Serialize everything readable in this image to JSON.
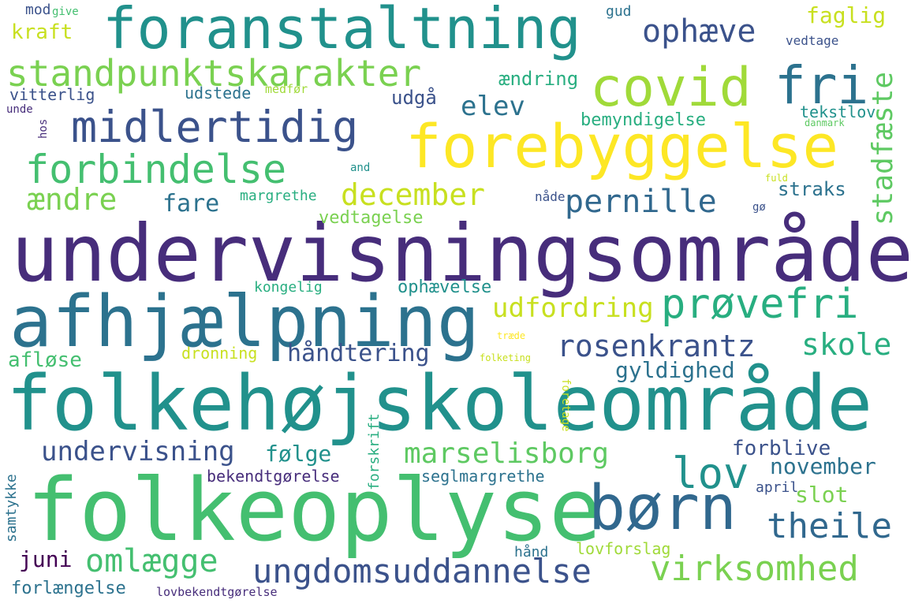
{
  "words": [
    {
      "text": "undervisningsområde",
      "color": "#472d7b"
    },
    {
      "text": "folkehøjskoleområde",
      "color": "#21918c"
    },
    {
      "text": "folkeoplyse",
      "color": "#44bf70"
    },
    {
      "text": "afhjælpning",
      "color": "#2c728e"
    },
    {
      "text": "forebyggelse",
      "color": "#fde725"
    },
    {
      "text": "foranstaltning",
      "color": "#21918c"
    },
    {
      "text": "covid",
      "color": "#a0da39"
    },
    {
      "text": "fri",
      "color": "#2c728e"
    },
    {
      "text": "børn",
      "color": "#31688e"
    },
    {
      "text": "midlertidig",
      "color": "#3b528b"
    },
    {
      "text": "standpunktskarakter",
      "color": "#7ad151"
    },
    {
      "text": "forbindelse",
      "color": "#44bf70"
    },
    {
      "text": "prøvefri",
      "color": "#28ae80"
    },
    {
      "text": "lov",
      "color": "#21918c"
    },
    {
      "text": "marselisborg",
      "color": "#5ec962"
    },
    {
      "text": "ungdomsuddannelse",
      "color": "#3b528b"
    },
    {
      "text": "virksomhed",
      "color": "#7ad151"
    },
    {
      "text": "omlægge",
      "color": "#44bf70"
    },
    {
      "text": "theile",
      "color": "#31688e"
    },
    {
      "text": "rosenkrantz",
      "color": "#3b528b"
    },
    {
      "text": "skole",
      "color": "#28ae80"
    },
    {
      "text": "december",
      "color": "#c8e020"
    },
    {
      "text": "pernille",
      "color": "#31688e"
    },
    {
      "text": "ophæve",
      "color": "#3b528b"
    },
    {
      "text": "ændre",
      "color": "#7ad151"
    },
    {
      "text": "elev",
      "color": "#2c728e"
    },
    {
      "text": "stadfæste",
      "color": "#5ec962"
    },
    {
      "text": "undervisning",
      "color": "#3b528b"
    },
    {
      "text": "udfordring",
      "color": "#c8e020"
    },
    {
      "text": "håndtering",
      "color": "#3b528b"
    },
    {
      "text": "gyldighed",
      "color": "#2c728e"
    },
    {
      "text": "november",
      "color": "#2c728e"
    },
    {
      "text": "forblive",
      "color": "#3b528b"
    },
    {
      "text": "fare",
      "color": "#2c728e"
    },
    {
      "text": "følge",
      "color": "#21918c"
    },
    {
      "text": "faglig",
      "color": "#c8e020"
    },
    {
      "text": "kraft",
      "color": "#c8e020"
    },
    {
      "text": "slot",
      "color": "#7ad151"
    },
    {
      "text": "juni",
      "color": "#440154"
    },
    {
      "text": "afløse",
      "color": "#44bf70"
    },
    {
      "text": "straks",
      "color": "#2c728e"
    },
    {
      "text": "udgå",
      "color": "#3b528b"
    },
    {
      "text": "ændring",
      "color": "#28ae80"
    },
    {
      "text": "vedtagelse",
      "color": "#7ad151"
    },
    {
      "text": "bemyndigelse",
      "color": "#28ae80"
    },
    {
      "text": "ophævelse",
      "color": "#21918c"
    },
    {
      "text": "forlængelse",
      "color": "#2c728e"
    },
    {
      "text": "tekstlov",
      "color": "#21918c"
    },
    {
      "text": "udstede",
      "color": "#2c728e"
    },
    {
      "text": "vitterlig",
      "color": "#3b528b"
    },
    {
      "text": "lovforslag",
      "color": "#a0da39"
    },
    {
      "text": "bekendtgørelse",
      "color": "#472d7b"
    },
    {
      "text": "seglmargrethe",
      "color": "#2c728e"
    },
    {
      "text": "margrethe",
      "color": "#28ae80"
    },
    {
      "text": "kongelig",
      "color": "#28ae80"
    },
    {
      "text": "dronning",
      "color": "#c8e020"
    },
    {
      "text": "april",
      "color": "#3b528b"
    },
    {
      "text": "hånd",
      "color": "#2c728e"
    },
    {
      "text": "samtykke",
      "color": "#2c728e"
    },
    {
      "text": "forskrift",
      "color": "#28ae80"
    },
    {
      "text": "foretage",
      "color": "#c8e020"
    },
    {
      "text": "lovbekendtgørelse",
      "color": "#472d7b"
    },
    {
      "text": "nåde",
      "color": "#3b528b"
    },
    {
      "text": "vedtage",
      "color": "#3b528b"
    },
    {
      "text": "gud",
      "color": "#2c728e"
    },
    {
      "text": "mod",
      "color": "#3b528b"
    },
    {
      "text": "give",
      "color": "#44bf70"
    },
    {
      "text": "medfør",
      "color": "#a0da39"
    },
    {
      "text": "hos",
      "color": "#472d7b"
    },
    {
      "text": "unde",
      "color": "#472d7b"
    },
    {
      "text": "danmark",
      "color": "#5ec962"
    },
    {
      "text": "and",
      "color": "#21918c"
    },
    {
      "text": "fuld",
      "color": "#c8e020"
    },
    {
      "text": "gø",
      "color": "#3b528b"
    },
    {
      "text": "træde",
      "color": "#fde725"
    },
    {
      "text": "folketing",
      "color": "#c8e020"
    }
  ]
}
